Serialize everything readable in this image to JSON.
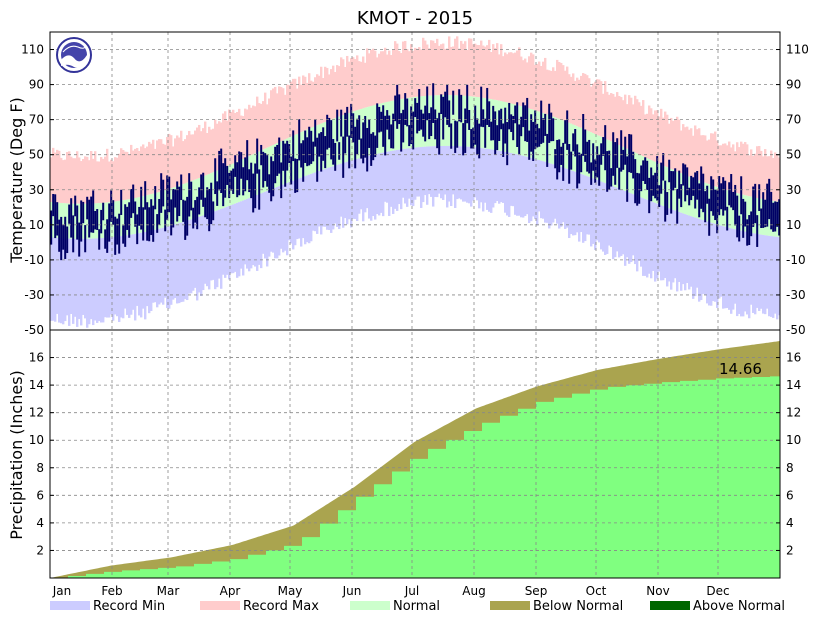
{
  "chart_data": {
    "type": "area",
    "title": "KMOT - 2015",
    "months": [
      "Jan",
      "Feb",
      "Mar",
      "Apr",
      "May",
      "Jun",
      "Jul",
      "Aug",
      "Sep",
      "Oct",
      "Nov",
      "Dec"
    ],
    "temperature": {
      "ylabel": "Temperature (Deg F)",
      "ylim": [
        -50,
        120
      ],
      "yticks": [
        -50,
        -30,
        -10,
        10,
        30,
        50,
        70,
        90,
        110
      ],
      "grid": true,
      "record_min_range": [
        -40,
        28
      ],
      "record_max_range": [
        45,
        110
      ],
      "normal_low_range": [
        2,
        55
      ],
      "normal_high_range": [
        22,
        84
      ],
      "observed_range": [
        -12,
        100
      ]
    },
    "precipitation": {
      "ylabel": "Precipitation (Inches)",
      "ylim": [
        0,
        18
      ],
      "yticks": [
        2,
        4,
        6,
        8,
        10,
        12,
        14,
        16
      ],
      "grid": true,
      "annotation": "14.66",
      "normal_cumulative": [
        0,
        0.9,
        1.5,
        2.4,
        3.8,
        6.6,
        9.9,
        12.3,
        13.9,
        15.1,
        15.9,
        16.6,
        17.2
      ],
      "observed_cumulative": [
        0,
        0.5,
        0.8,
        1.4,
        2.5,
        5.8,
        8.9,
        11.1,
        12.8,
        13.8,
        14.2,
        14.5,
        14.66
      ]
    },
    "legend": {
      "placement": "bottom",
      "entries": [
        {
          "label": "Record Min",
          "color": "#ccccff"
        },
        {
          "label": "Record Max",
          "color": "#ffcccc"
        },
        {
          "label": "Normal",
          "color": "#ccffcc"
        },
        {
          "label": "Below Normal",
          "color": "#aaa44f"
        },
        {
          "label": "Above Normal",
          "color": "#006600"
        }
      ]
    },
    "colors": {
      "observed_temp": "#000066",
      "observed_precip": "#80ff80",
      "grid": "#888888"
    }
  }
}
